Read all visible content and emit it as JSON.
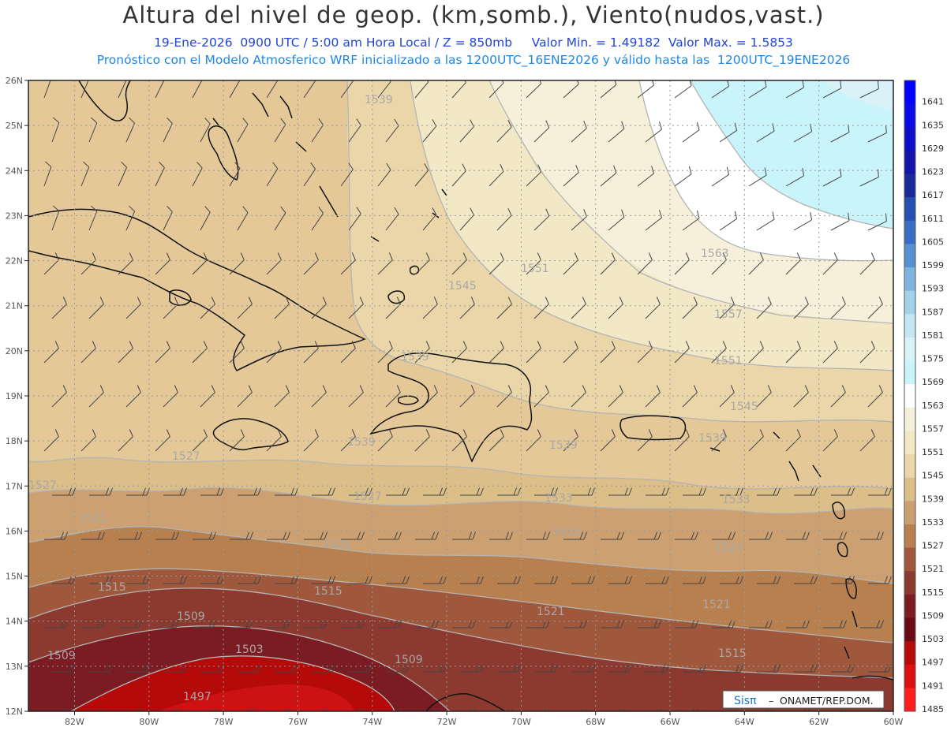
{
  "header": {
    "title": "Altura del nivel de geop. (km,somb.), Viento(nudos,vast.)",
    "line1": "19-Ene-2026  0900 UTC / 5:00 am Hora Local / Z = 850mb     Valor Min. = 1.49182  Valor Max. = 1.5853",
    "line2": "Pronóstico con el Modelo Atmosferico WRF inicializado a las 1200UTC_16ENE2026 y válido hasta las  1200UTC_19ENE2026"
  },
  "axes": {
    "lat_labels": [
      "26N",
      "25N",
      "24N",
      "23N",
      "22N",
      "21N",
      "20N",
      "19N",
      "18N",
      "17N",
      "16N",
      "15N",
      "14N",
      "13N",
      "12N"
    ],
    "lon_labels": [
      "82W",
      "80W",
      "78W",
      "76W",
      "74W",
      "72W",
      "70W",
      "68W",
      "66W",
      "64W",
      "62W",
      "60W"
    ]
  },
  "colorbar": {
    "levels": [
      "1641",
      "1635",
      "1629",
      "1623",
      "1617",
      "1611",
      "1605",
      "1599",
      "1593",
      "1587",
      "1581",
      "1575",
      "1569",
      "1563",
      "1557",
      "1551",
      "1545",
      "1539",
      "1533",
      "1527",
      "1521",
      "1515",
      "1509",
      "1503",
      "1497",
      "1491",
      "1485"
    ],
    "colors": [
      "#0000ff",
      "#0a0ae6",
      "#0e0ec8",
      "#1414a8",
      "#1a2a9a",
      "#2850b0",
      "#3a6cc4",
      "#5590d0",
      "#80b4e0",
      "#a4d2ea",
      "#c4e6f2",
      "#d8f2f8",
      "#c8f4fa",
      "#ffffff",
      "#f6f0da",
      "#f2e8c6",
      "#ead6a8",
      "#dcbe88",
      "#cca070",
      "#b8804f",
      "#a0583c",
      "#8c3a30",
      "#7a1c22",
      "#6a0a14",
      "#b40a0a",
      "#dc1010",
      "#ff1e1e"
    ]
  },
  "contour_labels": [
    "1539",
    "1551",
    "1563",
    "1545",
    "1557",
    "1551",
    "1545",
    "1539",
    "1539",
    "1539",
    "1539",
    "1527",
    "1527",
    "1527",
    "1533",
    "1533",
    "1533",
    "1527",
    "1521",
    "1521",
    "1521",
    "1521",
    "1515",
    "1515",
    "1515",
    "1509",
    "1509",
    "1509",
    "1503",
    "1497"
  ],
  "credit": {
    "logo": "Sisπ",
    "text": "ONAMET/REP.DOM."
  }
}
